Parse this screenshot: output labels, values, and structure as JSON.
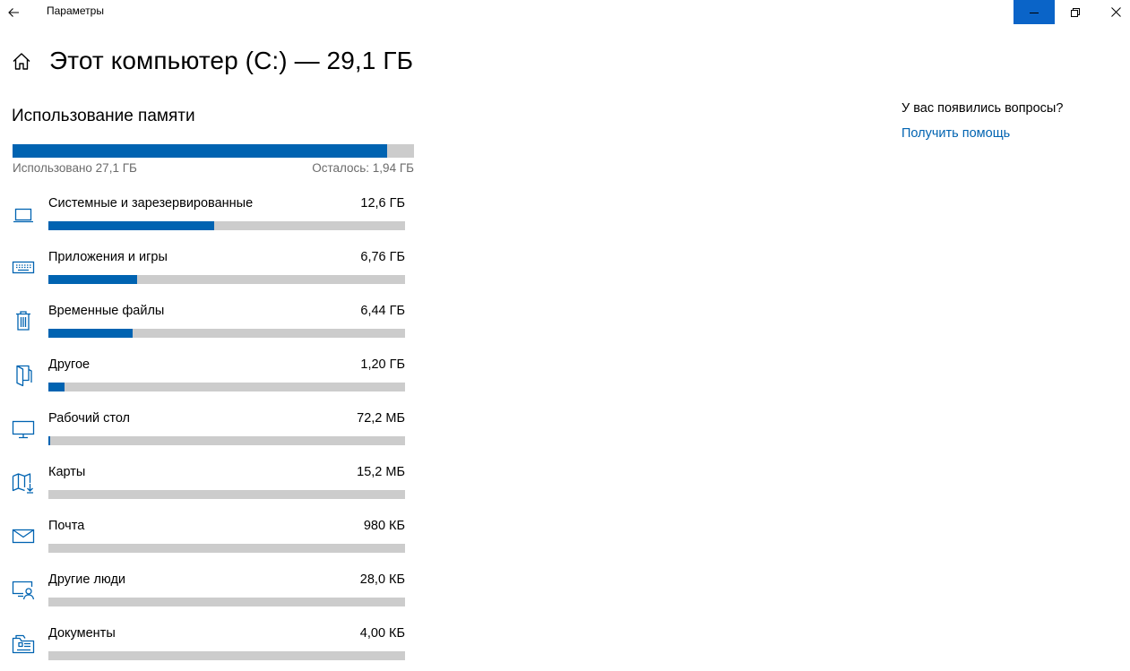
{
  "window": {
    "app_title": "Параметры"
  },
  "header": {
    "page_title": "Этот компьютер (C:) — 29,1 ГБ"
  },
  "usage": {
    "section_title": "Использование памяти",
    "used_label": "Использовано 27,1 ГБ",
    "free_label": "Осталось: 1,94 ГБ",
    "used_fraction": 0.933
  },
  "categories": [
    {
      "name": "Системные и зарезервированные",
      "size": "12,6 ГБ",
      "fraction": 0.465,
      "icon": "laptop-icon"
    },
    {
      "name": "Приложения и игры",
      "size": "6,76 ГБ",
      "fraction": 0.249,
      "icon": "keyboard-icon"
    },
    {
      "name": "Временные файлы",
      "size": "6,44 ГБ",
      "fraction": 0.237,
      "icon": "trash-icon"
    },
    {
      "name": "Другое",
      "size": "1,20 ГБ",
      "fraction": 0.045,
      "icon": "folder-open-icon"
    },
    {
      "name": "Рабочий стол",
      "size": "72,2 МБ",
      "fraction": 0.004,
      "icon": "monitor-icon"
    },
    {
      "name": "Карты",
      "size": "15,2 МБ",
      "fraction": 0.0,
      "icon": "map-icon"
    },
    {
      "name": "Почта",
      "size": "980 КБ",
      "fraction": 0.0,
      "icon": "mail-icon"
    },
    {
      "name": "Другие люди",
      "size": "28,0 КБ",
      "fraction": 0.0,
      "icon": "user-screen-icon"
    },
    {
      "name": "Документы",
      "size": "4,00 КБ",
      "fraction": 0.0,
      "icon": "documents-folder-icon"
    }
  ],
  "help": {
    "question": "У вас появились вопросы?",
    "link": "Получить помощь"
  },
  "colors": {
    "accent": "#0063b1",
    "track": "#cccccc",
    "min_button_bg": "#0a64c8"
  }
}
